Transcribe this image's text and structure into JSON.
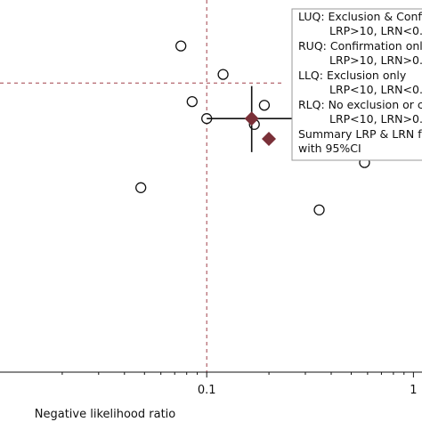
{
  "chart_data": {
    "type": "scatter",
    "xlabel": "Negative likelihood ratio",
    "ylabel": "",
    "x_scale": "log",
    "x_tick_labels": [
      "0.1",
      "1"
    ],
    "x_ticks": [
      0.1,
      1
    ],
    "xlim": [
      0.01,
      1.1
    ],
    "y_scale": "log",
    "ylim": [
      0.55,
      23
    ],
    "reference_lines": {
      "x": 0.1,
      "y": 10,
      "color": "#a0404a",
      "style": "dashed"
    },
    "points": [
      {
        "x": 0.075,
        "y": 14.5
      },
      {
        "x": 0.3,
        "y": 12.9
      },
      {
        "x": 0.12,
        "y": 10.9
      },
      {
        "x": 0.085,
        "y": 8.3
      },
      {
        "x": 0.19,
        "y": 8.0
      },
      {
        "x": 0.45,
        "y": 7.7
      },
      {
        "x": 0.1,
        "y": 7.0
      },
      {
        "x": 0.17,
        "y": 6.6
      },
      {
        "x": 0.29,
        "y": 5.8
      },
      {
        "x": 0.32,
        "y": 5.2
      },
      {
        "x": 0.58,
        "y": 4.5
      },
      {
        "x": 0.048,
        "y": 3.5
      },
      {
        "x": 0.35,
        "y": 2.8
      }
    ],
    "summary": {
      "x": 0.165,
      "y": 7.0,
      "x_ci": [
        0.1,
        0.31
      ],
      "y_ci": [
        5.0,
        9.7
      ],
      "color": "#7a3038"
    },
    "legend": [
      {
        "marker": "none",
        "lines": [
          "LUQ: Exclusion & Confi",
          "LRP>10, LRN<0."
        ]
      },
      {
        "marker": "none",
        "lines": [
          "RUQ: Confirmation only",
          "LRP>10, LRN>0."
        ]
      },
      {
        "marker": "none",
        "lines": [
          "LLQ: Exclusion only",
          "LRP<10, LRN<0."
        ]
      },
      {
        "marker": "none",
        "lines": [
          "RLQ: No exclusion or c",
          "LRP<10, LRN>0."
        ]
      },
      {
        "marker": "diamond",
        "lines": [
          "Summary LRP & LRN fo",
          "with 95%CI"
        ]
      }
    ],
    "legend_position": "top-right"
  }
}
